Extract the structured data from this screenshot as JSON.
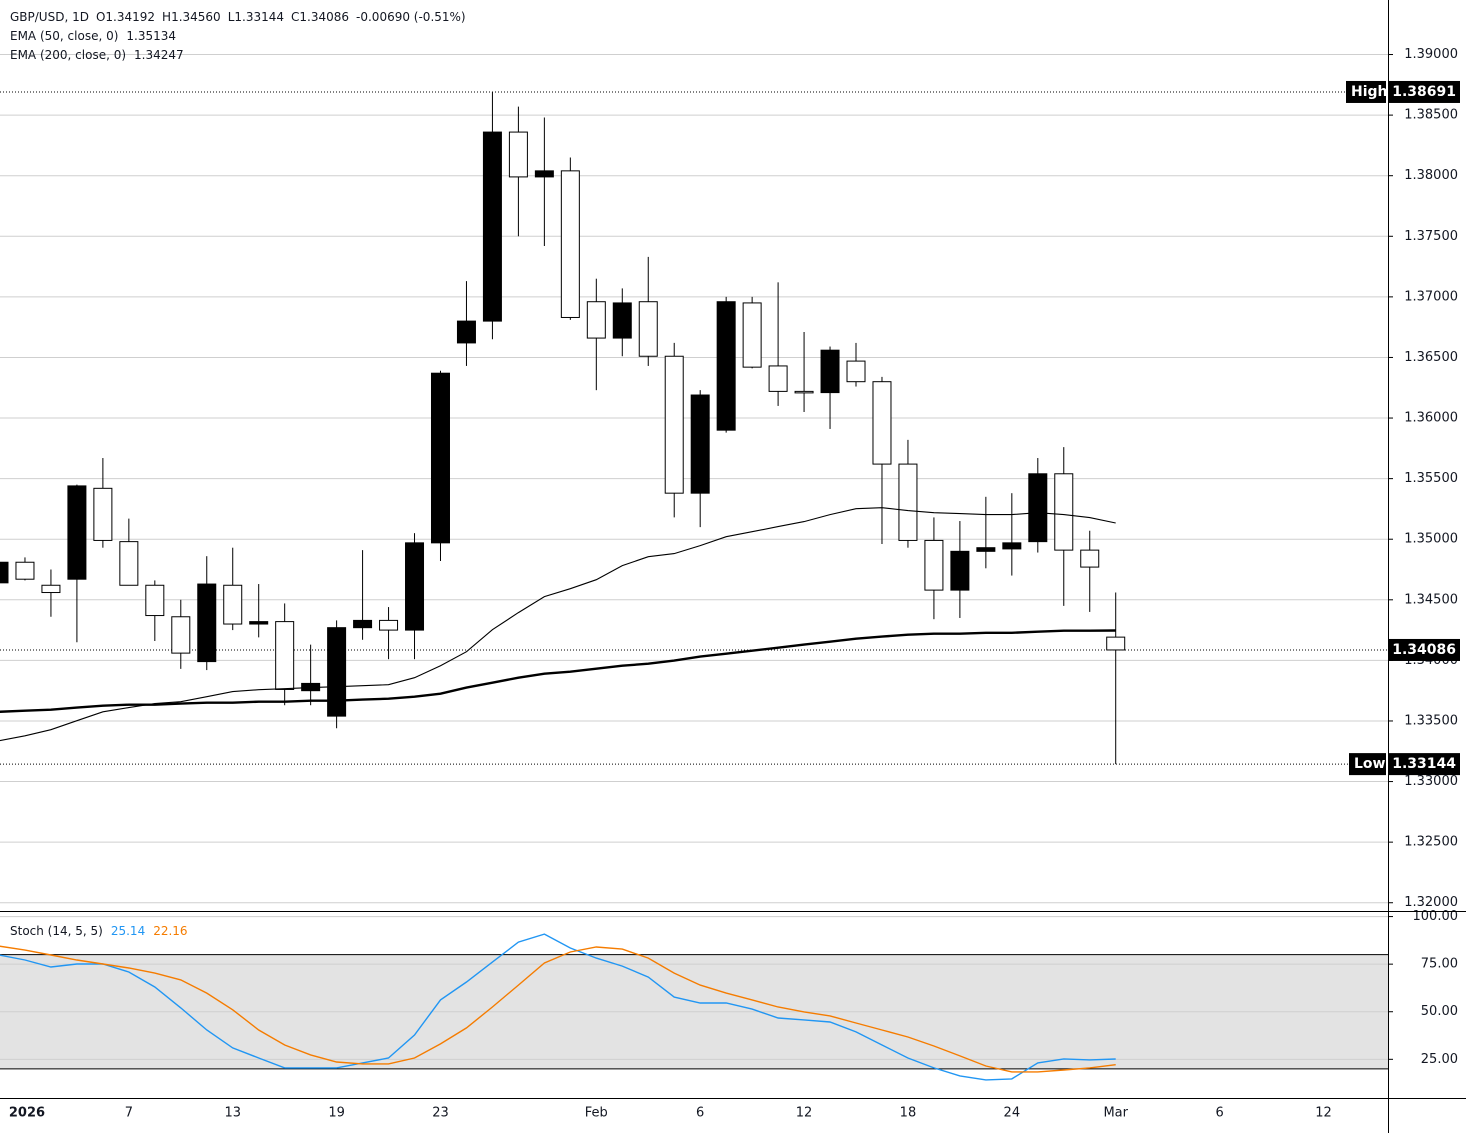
{
  "chart_data": [
    {
      "type": "candlestick",
      "header": [
        "GBP/USD, 1D",
        "O1.34192",
        "H1.34560",
        "L1.33144",
        "C1.34086",
        "-0.00690 (-0.51%)"
      ],
      "categories": [
        null,
        "2026",
        null,
        null,
        null,
        "7",
        null,
        null,
        null,
        "13",
        null,
        null,
        null,
        "19",
        null,
        null,
        null,
        "23",
        null,
        null,
        null,
        null,
        null,
        "Feb",
        null,
        null,
        null,
        "6",
        null,
        null,
        null,
        "12",
        null,
        null,
        null,
        "18",
        null,
        null,
        null,
        "24",
        null,
        null,
        null,
        "Mar",
        null,
        null,
        null,
        "6",
        null,
        null,
        null,
        "12"
      ],
      "open": [
        1.3464,
        1.3481,
        1.3462,
        1.3467,
        1.3542,
        1.3498,
        1.3462,
        1.3436,
        1.3399,
        1.3462,
        1.343,
        1.3432,
        1.3375,
        1.3354,
        1.3427,
        1.3433,
        1.3425,
        1.3497,
        1.3662,
        1.368,
        1.3836,
        1.3799,
        1.3804,
        1.3696,
        1.3666,
        1.3696,
        1.3651,
        1.3538,
        1.359,
        1.3695,
        1.3643,
        1.3622,
        1.3621,
        1.3647,
        1.363,
        1.3562,
        1.3499,
        1.3458,
        1.349,
        1.3492,
        1.3498,
        1.3554,
        1.3491,
        1.34192,
        null,
        null,
        null,
        null,
        null,
        null,
        null,
        null
      ],
      "high": [
        1.3483,
        1.3485,
        1.3475,
        1.3545,
        1.3567,
        1.3517,
        1.3466,
        1.345,
        1.3486,
        1.3493,
        1.3463,
        1.3447,
        1.3413,
        1.3433,
        1.3491,
        1.3444,
        1.3505,
        1.3639,
        1.3713,
        1.38691,
        1.3857,
        1.3848,
        1.3815,
        1.3715,
        1.3707,
        1.3733,
        1.3662,
        1.3623,
        1.37,
        1.37,
        1.3712,
        1.3671,
        1.3659,
        1.3662,
        1.3634,
        1.3582,
        1.3518,
        1.3515,
        1.3535,
        1.3538,
        1.3567,
        1.3576,
        1.3507,
        1.3456,
        null,
        null,
        null,
        null,
        null,
        null,
        null,
        null
      ],
      "low": [
        1.3463,
        1.3466,
        1.3436,
        1.3415,
        1.3493,
        1.3462,
        1.3416,
        1.3393,
        1.3392,
        1.3425,
        1.3419,
        1.3363,
        1.3363,
        1.3344,
        1.3417,
        1.3401,
        1.3401,
        1.3482,
        1.3643,
        1.3665,
        1.375,
        1.3742,
        1.3681,
        1.3623,
        1.3651,
        1.3643,
        1.3518,
        1.351,
        1.3588,
        1.3641,
        1.361,
        1.3605,
        1.3591,
        1.3626,
        1.3496,
        1.3493,
        1.3434,
        1.3435,
        1.3476,
        1.347,
        1.3489,
        1.3445,
        1.344,
        1.33144,
        null,
        null,
        null,
        null,
        null,
        null,
        null,
        null
      ],
      "close": [
        1.3481,
        1.3467,
        1.3456,
        1.3544,
        1.3499,
        1.3462,
        1.3437,
        1.3406,
        1.3463,
        1.343,
        1.3432,
        1.3376,
        1.3381,
        1.3427,
        1.3433,
        1.3425,
        1.3497,
        1.3637,
        1.368,
        1.3836,
        1.3799,
        1.3804,
        1.3683,
        1.3666,
        1.3695,
        1.3651,
        1.3538,
        1.3619,
        1.3696,
        1.3642,
        1.3622,
        1.3621,
        1.3656,
        1.363,
        1.3562,
        1.3499,
        1.3458,
        1.349,
        1.3493,
        1.3497,
        1.3554,
        1.3491,
        1.3477,
        1.34086,
        null,
        null,
        null,
        null,
        null,
        null,
        null,
        null
      ],
      "up_color": "#000000",
      "down_color": "#ffffff",
      "candle_stroke": "#000000",
      "overlays": [
        {
          "name": "EMA (50, close, 0)",
          "value_label": "1.35134",
          "color": "#000000",
          "width": 1.1,
          "values": [
            1.33337,
            1.33378,
            1.33428,
            1.33502,
            1.33576,
            1.3361,
            1.33643,
            1.33659,
            1.337,
            1.33742,
            1.33758,
            1.33766,
            1.33775,
            1.33783,
            1.33791,
            1.33799,
            1.33857,
            1.33956,
            1.34072,
            1.34253,
            1.34394,
            1.34526,
            1.34592,
            1.34666,
            1.34782,
            1.34856,
            1.34881,
            1.34947,
            1.35021,
            1.35062,
            1.35104,
            1.35145,
            1.35203,
            1.35252,
            1.3526,
            1.35236,
            1.35219,
            1.35211,
            1.35203,
            1.35203,
            1.35219,
            1.35203,
            1.35178,
            1.35134,
            null,
            null,
            null,
            null,
            null,
            null,
            null,
            null
          ]
        },
        {
          "name": "EMA (200, close, 0)",
          "value_label": "1.34247",
          "color": "#000000",
          "width": 2.4,
          "values": [
            1.33576,
            1.33585,
            1.33593,
            1.3361,
            1.33626,
            1.33634,
            1.33634,
            1.33643,
            1.33651,
            1.33651,
            1.33659,
            1.33659,
            1.33667,
            1.33667,
            1.33676,
            1.33684,
            1.337,
            1.33725,
            1.33775,
            1.33816,
            1.33857,
            1.3389,
            1.33907,
            1.33931,
            1.33956,
            1.33973,
            1.33998,
            1.34031,
            1.34055,
            1.3408,
            1.34105,
            1.3413,
            1.34154,
            1.34179,
            1.34196,
            1.34212,
            1.3422,
            1.3422,
            1.34228,
            1.34228,
            1.34237,
            1.34245,
            1.34245,
            1.34247,
            null,
            null,
            null,
            null,
            null,
            null,
            null,
            null
          ]
        }
      ],
      "ylim": [
        1.3194,
        1.3945
      ],
      "yticks": [
        {
          "value": 1.32,
          "label": "1.32000"
        },
        {
          "value": 1.325,
          "label": "1.32500"
        },
        {
          "value": 1.33,
          "label": "1.33000"
        },
        {
          "value": 1.335,
          "label": "1.33500"
        },
        {
          "value": 1.34,
          "label": "1.34000"
        },
        {
          "value": 1.345,
          "label": "1.34500"
        },
        {
          "value": 1.35,
          "label": "1.35000"
        },
        {
          "value": 1.355,
          "label": "1.35500"
        },
        {
          "value": 1.36,
          "label": "1.36000"
        },
        {
          "value": 1.365,
          "label": "1.36500"
        },
        {
          "value": 1.37,
          "label": "1.37000"
        },
        {
          "value": 1.375,
          "label": "1.37500"
        },
        {
          "value": 1.38,
          "label": "1.38000"
        },
        {
          "value": 1.385,
          "label": "1.38500"
        },
        {
          "value": 1.39,
          "label": "1.39000"
        }
      ],
      "grid": true,
      "high_marker": {
        "label": "High",
        "value": 1.38691,
        "value_label": "1.38691"
      },
      "low_marker": {
        "label": "Low",
        "value": 1.33144,
        "value_label": "1.33144"
      },
      "last_price": {
        "value": 1.34086,
        "value_label": "1.34086"
      }
    },
    {
      "type": "line",
      "name": "Stoch (14, 5, 5)",
      "series": [
        {
          "color": "#2196f3",
          "value_label": "25.14",
          "values": [
            79.8,
            77.2,
            73.5,
            75.1,
            75.1,
            70.9,
            63.0,
            52.0,
            40.4,
            31.0,
            25.7,
            20.5,
            20.5,
            20.5,
            23.1,
            25.7,
            37.8,
            56.2,
            65.6,
            76.1,
            86.6,
            90.8,
            83.5,
            78.2,
            74.0,
            68.2,
            57.7,
            54.6,
            54.6,
            51.4,
            46.7,
            45.7,
            44.6,
            39.4,
            32.5,
            25.7,
            20.5,
            16.3,
            14.2,
            14.7,
            23.1,
            25.2,
            24.7,
            25.14,
            null,
            null,
            null,
            null,
            null,
            null,
            null,
            null
          ]
        },
        {
          "color": "#f57c00",
          "value_label": "22.16",
          "values": [
            84.5,
            82.4,
            79.8,
            77.2,
            75.1,
            73.0,
            70.3,
            66.7,
            59.8,
            51.0,
            40.4,
            32.5,
            27.3,
            23.6,
            22.6,
            22.6,
            25.7,
            33.1,
            41.5,
            52.5,
            64.0,
            75.6,
            81.4,
            84.0,
            82.9,
            78.2,
            70.3,
            64.0,
            59.8,
            56.2,
            52.5,
            49.9,
            47.8,
            44.1,
            40.4,
            36.7,
            32.0,
            26.8,
            21.5,
            18.4,
            18.4,
            19.4,
            20.5,
            22.16,
            null,
            null,
            null,
            null,
            null,
            null,
            null,
            null
          ]
        }
      ],
      "ylim": [
        5.2,
        102.4
      ],
      "yticks": [
        {
          "value": 25,
          "label": "25.00"
        },
        {
          "value": 50,
          "label": "50.00"
        },
        {
          "value": 75,
          "label": "75.00"
        },
        {
          "value": 100,
          "label": "100.00"
        }
      ],
      "band": [
        20,
        80
      ],
      "band_color": "#e3e3e3",
      "grid": true
    }
  ]
}
